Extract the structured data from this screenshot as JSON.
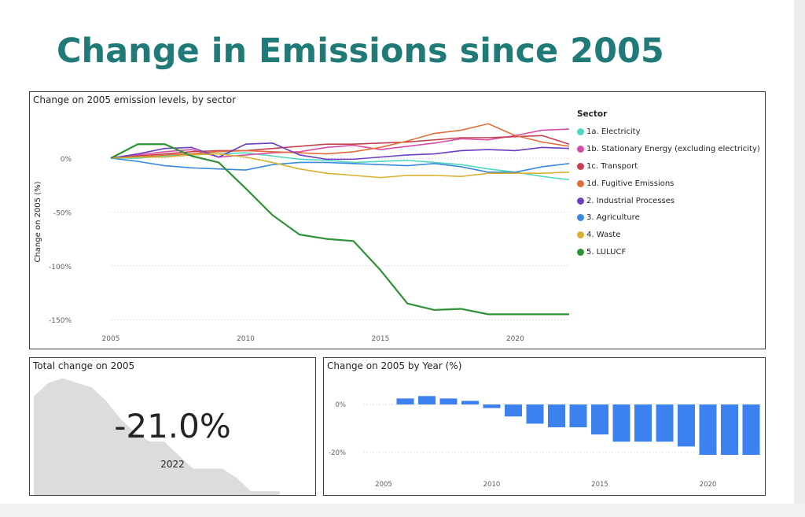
{
  "page": {
    "title": "Change in Emissions since 2005"
  },
  "chart_data": [
    {
      "type": "line",
      "title": "Change on 2005 emission levels, by sector",
      "xlabel": "",
      "ylabel": "Change on 2005 (%)",
      "x": [
        2005,
        2006,
        2007,
        2008,
        2009,
        2010,
        2011,
        2012,
        2013,
        2014,
        2015,
        2016,
        2017,
        2018,
        2019,
        2020,
        2021,
        2022
      ],
      "xticks": [
        2005,
        2010,
        2015,
        2020
      ],
      "xtick_labels": [
        "2005",
        "2010",
        "2015",
        "2020"
      ],
      "xlim": [
        2005,
        2022
      ],
      "ylim": [
        -152,
        32
      ],
      "yticks": [
        0,
        -50,
        -100,
        -150
      ],
      "ytick_labels": [
        "0%",
        "-50%",
        "-100%",
        "-150%"
      ],
      "grid": true,
      "legend_title": "Sector",
      "legend_position": "right",
      "series": [
        {
          "name": "1a. Electricity",
          "color": "#4fd6bc",
          "values": [
            0,
            0,
            2,
            4,
            4,
            5,
            2,
            -1,
            -2,
            -4,
            -3,
            -2,
            -4,
            -6,
            -10,
            -13,
            -17,
            -20
          ]
        },
        {
          "name": "1b. Stationary Energy (excluding electricity)",
          "color": "#d64fa4",
          "values": [
            0,
            3,
            6,
            8,
            1,
            3,
            5,
            6,
            10,
            12,
            8,
            11,
            14,
            18,
            17,
            21,
            26,
            27
          ]
        },
        {
          "name": "1c. Transport",
          "color": "#c4414d",
          "values": [
            0,
            2,
            4,
            6,
            7,
            7,
            9,
            11,
            13,
            13,
            14,
            15,
            17,
            19,
            19,
            20,
            21,
            13
          ]
        },
        {
          "name": "1d. Fugitive Emissions",
          "color": "#e0703a",
          "values": [
            0,
            1,
            3,
            4,
            6,
            7,
            6,
            5,
            4,
            6,
            10,
            16,
            23,
            26,
            32,
            21,
            15,
            11
          ]
        },
        {
          "name": "2. Industrial Processes",
          "color": "#6b3fbf",
          "values": [
            0,
            4,
            9,
            10,
            1,
            13,
            14,
            3,
            -1,
            -1,
            1,
            3,
            4,
            7,
            8,
            7,
            10,
            9
          ]
        },
        {
          "name": "3. Agriculture",
          "color": "#3a8ae0",
          "values": [
            0,
            -3,
            -7,
            -9,
            -10,
            -11,
            -6,
            -4,
            -4,
            -5,
            -6,
            -7,
            -5,
            -8,
            -13,
            -13,
            -8,
            -5
          ]
        },
        {
          "name": "4. Waste",
          "color": "#d9b031",
          "values": [
            0,
            1,
            1,
            3,
            4,
            1,
            -4,
            -10,
            -14,
            -16,
            -18,
            -16,
            -16,
            -17,
            -14,
            -14,
            -14,
            -13
          ]
        },
        {
          "name": "5. LULUCF",
          "color": "#2f9237",
          "values": [
            0,
            13,
            13,
            2,
            -4,
            -28,
            -53,
            -71,
            -75,
            -77,
            -104,
            -135,
            -141,
            -140,
            -145,
            -145,
            -145,
            -145
          ]
        }
      ]
    },
    {
      "type": "area",
      "title": "Total change on 2005",
      "kpi_value": "-21.0%",
      "kpi_label": "2022",
      "x": [
        2005,
        2006,
        2007,
        2008,
        2009,
        2010,
        2011,
        2012,
        2013,
        2014,
        2015,
        2016,
        2017,
        2018,
        2019,
        2020,
        2021,
        2022
      ],
      "values": [
        0,
        3,
        4,
        3,
        2,
        -1,
        -5,
        -8,
        -10,
        -10,
        -13,
        -16,
        -16,
        -16,
        -18,
        -21,
        -21,
        -21
      ],
      "ylim": [
        -22,
        5
      ],
      "color": "#dcdcdc"
    },
    {
      "type": "bar",
      "title": "Change on 2005 by Year (%)",
      "categories": [
        2005,
        2006,
        2007,
        2008,
        2009,
        2010,
        2011,
        2012,
        2013,
        2014,
        2015,
        2016,
        2017,
        2018,
        2019,
        2020,
        2021,
        2022
      ],
      "values": [
        0,
        2.5,
        3.5,
        2.5,
        1.5,
        -1.5,
        -5,
        -8,
        -9.5,
        -9.5,
        -12.5,
        -15.5,
        -15.5,
        -15.5,
        -17.5,
        -21,
        -21,
        -21
      ],
      "xticks": [
        2005,
        2010,
        2015,
        2020
      ],
      "xtick_labels": [
        "2005",
        "2010",
        "2015",
        "2020"
      ],
      "yticks": [
        0,
        -20
      ],
      "ytick_labels": [
        "0%",
        "-20%"
      ],
      "ylim": [
        -25,
        6
      ],
      "color": "#3b82f0"
    }
  ]
}
